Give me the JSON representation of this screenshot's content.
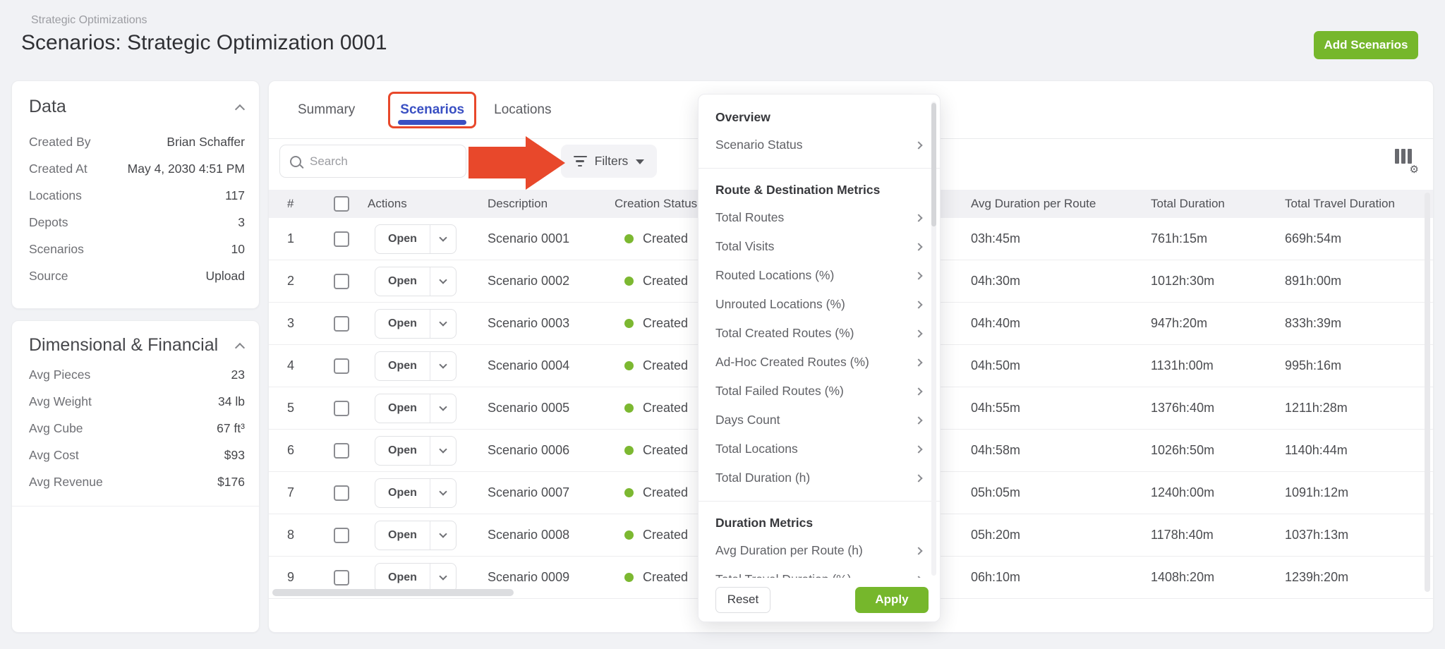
{
  "page": {
    "breadcrumb": "Strategic Optimizations",
    "title": "Scenarios: Strategic Optimization 0001",
    "add_button_label": "Add Scenarios"
  },
  "colors": {
    "green": "#76B72C",
    "active_tab_blue": "#3A50C3",
    "annotation_red": "#E8482B",
    "status_dot_green": "#7CB831"
  },
  "sidebar": {
    "data_panel": {
      "title": "Data",
      "rows": [
        {
          "label": "Created By",
          "value": "Brian Schaffer"
        },
        {
          "label": "Created At",
          "value": "May 4, 2030 4:51 PM"
        },
        {
          "label": "Locations",
          "value": "117"
        },
        {
          "label": "Depots",
          "value": "3"
        },
        {
          "label": "Scenarios",
          "value": "10"
        },
        {
          "label": "Source",
          "value": "Upload"
        }
      ]
    },
    "dimensional_panel": {
      "title": "Dimensional & Financial",
      "rows": [
        {
          "label": "Avg Pieces",
          "value": "23"
        },
        {
          "label": "Avg Weight",
          "value": "34 lb"
        },
        {
          "label": "Avg Cube",
          "value": "67 ft³"
        },
        {
          "label": "Avg Cost",
          "value": "$93"
        },
        {
          "label": "Avg Revenue",
          "value": "$176"
        }
      ]
    }
  },
  "main": {
    "tabs": [
      {
        "label": "Summary",
        "active": false
      },
      {
        "label": "Scenarios",
        "active": true
      },
      {
        "label": "Locations",
        "active": false
      }
    ],
    "search_placeholder": "Search",
    "filters_label": "Filters",
    "table": {
      "columns": [
        "#",
        "",
        "Actions",
        "Description",
        "Creation Status",
        "Avg Duration per Route",
        "Total Duration",
        "Total Travel Duration"
      ],
      "action_label": "Open",
      "rows": [
        {
          "num": "1",
          "description": "Scenario 0001",
          "status": "Created",
          "avg_duration": "03h:45m",
          "total_duration": "761h:15m",
          "total_travel": "669h:54m"
        },
        {
          "num": "2",
          "description": "Scenario 0002",
          "status": "Created",
          "avg_duration": "04h:30m",
          "total_duration": "1012h:30m",
          "total_travel": "891h:00m"
        },
        {
          "num": "3",
          "description": "Scenario 0003",
          "status": "Created",
          "avg_duration": "04h:40m",
          "total_duration": "947h:20m",
          "total_travel": "833h:39m"
        },
        {
          "num": "4",
          "description": "Scenario 0004",
          "status": "Created",
          "avg_duration": "04h:50m",
          "total_duration": "1131h:00m",
          "total_travel": "995h:16m"
        },
        {
          "num": "5",
          "description": "Scenario 0005",
          "status": "Created",
          "avg_duration": "04h:55m",
          "total_duration": "1376h:40m",
          "total_travel": "1211h:28m"
        },
        {
          "num": "6",
          "description": "Scenario 0006",
          "status": "Created",
          "avg_duration": "04h:58m",
          "total_duration": "1026h:50m",
          "total_travel": "1140h:44m"
        },
        {
          "num": "7",
          "description": "Scenario 0007",
          "status": "Created",
          "avg_duration": "05h:05m",
          "total_duration": "1240h:00m",
          "total_travel": "1091h:12m"
        },
        {
          "num": "8",
          "description": "Scenario 0008",
          "status": "Created",
          "avg_duration": "05h:20m",
          "total_duration": "1178h:40m",
          "total_travel": "1037h:13m"
        },
        {
          "num": "9",
          "description": "Scenario 0009",
          "status": "Created",
          "avg_duration": "06h:10m",
          "total_duration": "1408h:20m",
          "total_travel": "1239h:20m"
        }
      ]
    }
  },
  "filters_menu": {
    "sections": [
      {
        "header": "Overview",
        "items": [
          "Scenario Status"
        ]
      },
      {
        "header": "Route & Destination Metrics",
        "items": [
          "Total Routes",
          "Total Visits",
          "Routed Locations (%)",
          "Unrouted Locations (%)",
          "Total Created Routes (%)",
          "Ad-Hoc Created Routes (%)",
          "Total Failed Routes (%)",
          "Days Count",
          "Total Locations",
          "Total Duration (h)"
        ]
      },
      {
        "header": "Duration Metrics",
        "items": [
          "Avg Duration per Route (h)",
          "Total Travel Duration (%)"
        ]
      }
    ],
    "reset_label": "Reset",
    "apply_label": "Apply"
  }
}
